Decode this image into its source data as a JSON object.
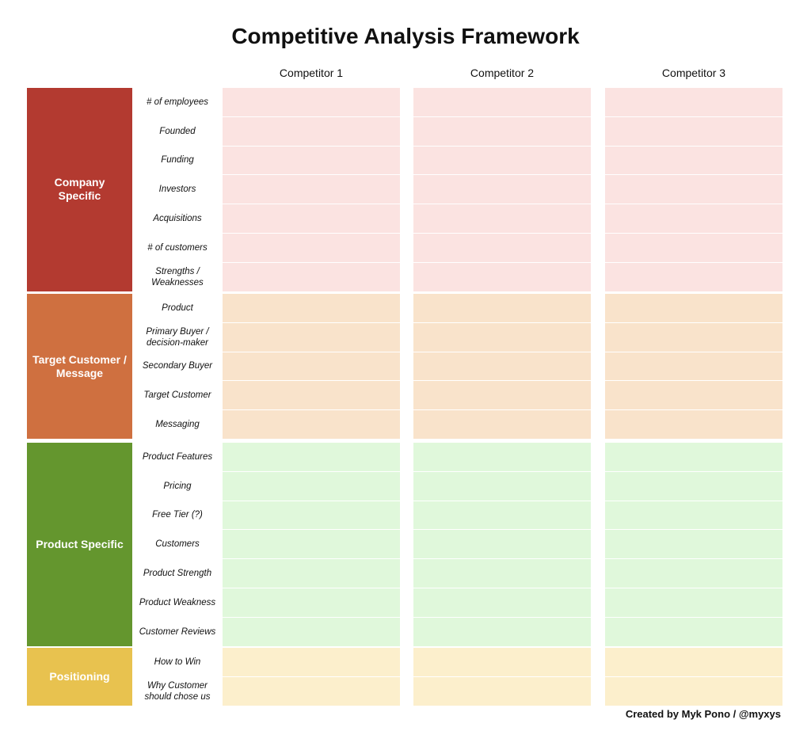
{
  "title": "Competitive Analysis Framework",
  "competitors": [
    "Competitor 1",
    "Competitor 2",
    "Competitor 3"
  ],
  "sections": [
    {
      "label": "Company Specific",
      "block_color": "#b33a30",
      "cell_color": "#fbe3e1",
      "rows": [
        "# of employees",
        "Founded",
        "Funding",
        "Investors",
        "Acquisitions",
        "# of customers",
        "Strengths /\nWeaknesses"
      ]
    },
    {
      "label": "Target Customer / Message",
      "block_color": "#cf7040",
      "cell_color": "#f9e3cb",
      "rows": [
        "Product",
        "Primary Buyer /\ndecision-maker",
        "Secondary Buyer",
        "Target Customer",
        "Messaging"
      ]
    },
    {
      "label": "Product Specific",
      "block_color": "#64962e",
      "cell_color": "#e0f8db",
      "rows": [
        "Product Features",
        "Pricing",
        "Free Tier (?)",
        "Customers",
        "Product Strength",
        "Product Weakness",
        "Customer Reviews"
      ]
    },
    {
      "label": "Positioning",
      "block_color": "#e8c24f",
      "cell_color": "#fcefcc",
      "rows": [
        "How to Win",
        "Why Customer\nshould chose us"
      ]
    }
  ],
  "footer": "Created by Myk Pono / @myxys"
}
